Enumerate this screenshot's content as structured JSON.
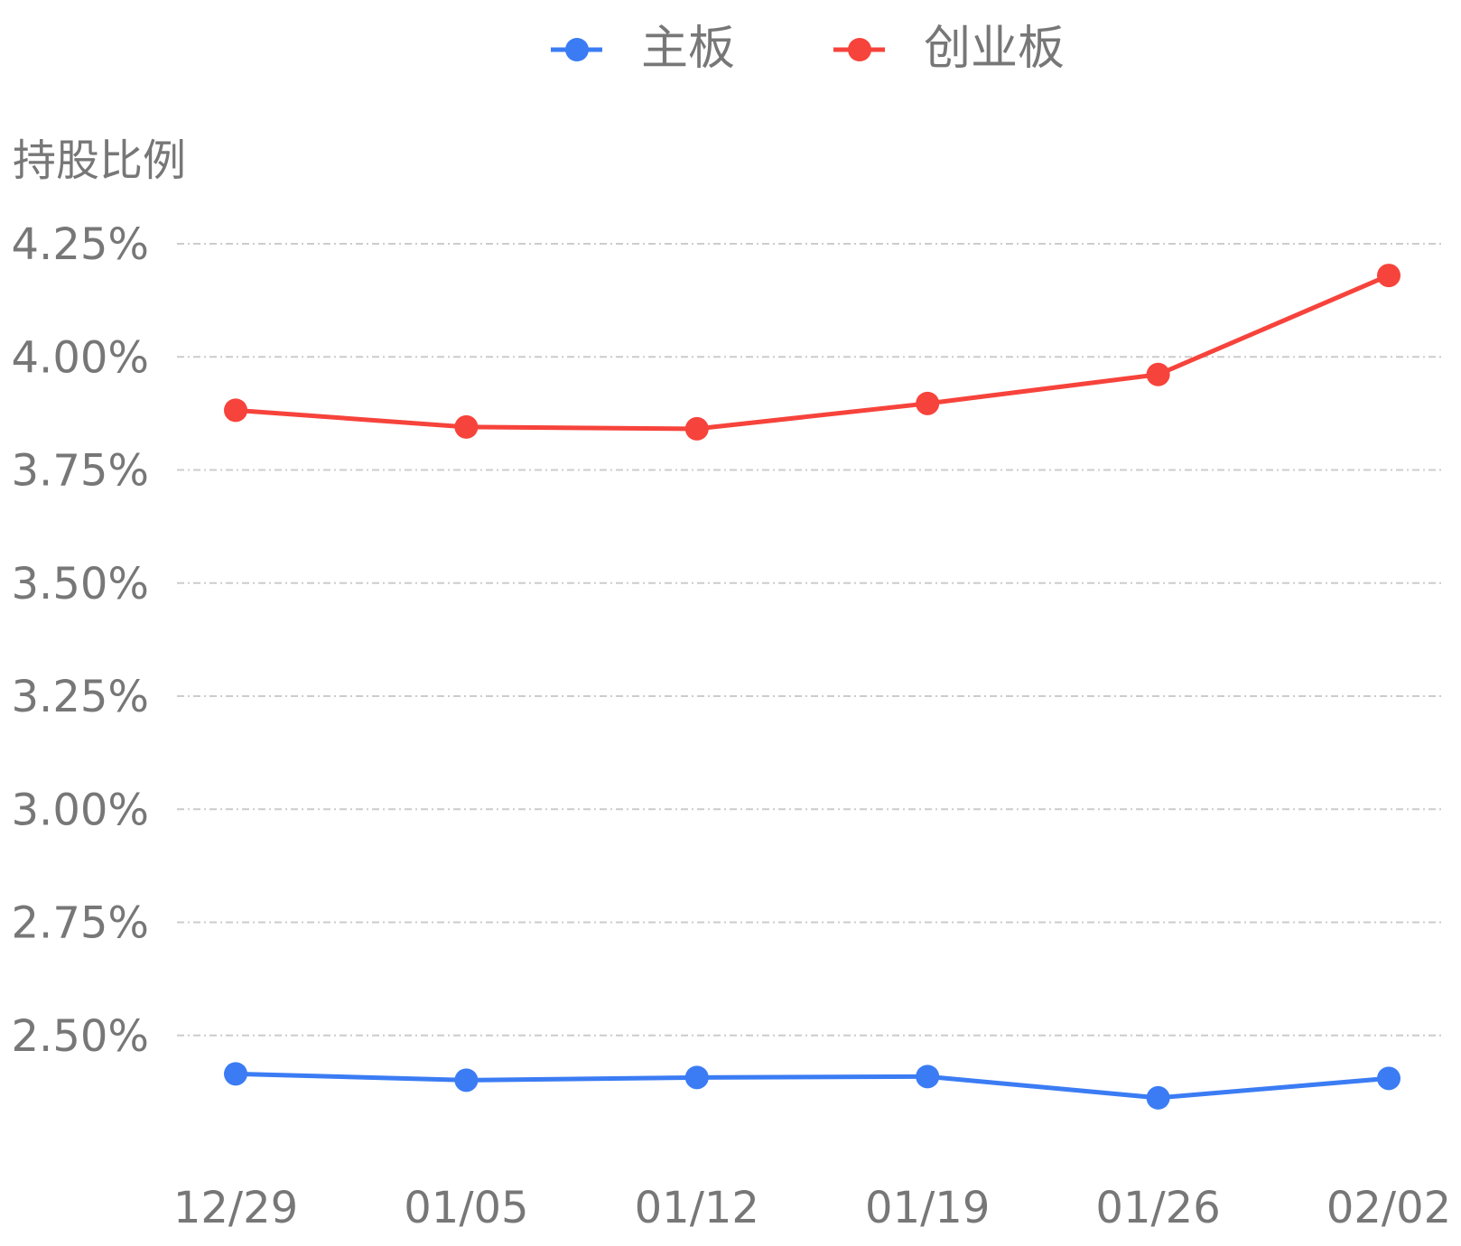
{
  "chart_data": {
    "type": "line",
    "y_label": "持股比例",
    "categories": [
      "12/29",
      "01/05",
      "01/12",
      "01/19",
      "01/26",
      "02/02"
    ],
    "series": [
      {
        "name": "主板",
        "color": "#3b7cf4",
        "values": [
          2.415,
          2.401,
          2.407,
          2.409,
          2.362,
          2.405
        ]
      },
      {
        "name": "创业板",
        "color": "#f6433b",
        "values": [
          3.882,
          3.845,
          3.841,
          3.897,
          3.961,
          4.18
        ]
      }
    ],
    "ylim": [
      2.25,
      4.25
    ],
    "yticks": [
      {
        "value": 2.5,
        "label": "2.50%"
      },
      {
        "value": 2.75,
        "label": "2.75%"
      },
      {
        "value": 3.0,
        "label": "3.00%"
      },
      {
        "value": 3.25,
        "label": "3.25%"
      },
      {
        "value": 3.5,
        "label": "3.50%"
      },
      {
        "value": 3.75,
        "label": "3.75%"
      },
      {
        "value": 4.0,
        "label": "4.00%"
      },
      {
        "value": 4.25,
        "label": "4.25%"
      }
    ],
    "grid": true
  }
}
